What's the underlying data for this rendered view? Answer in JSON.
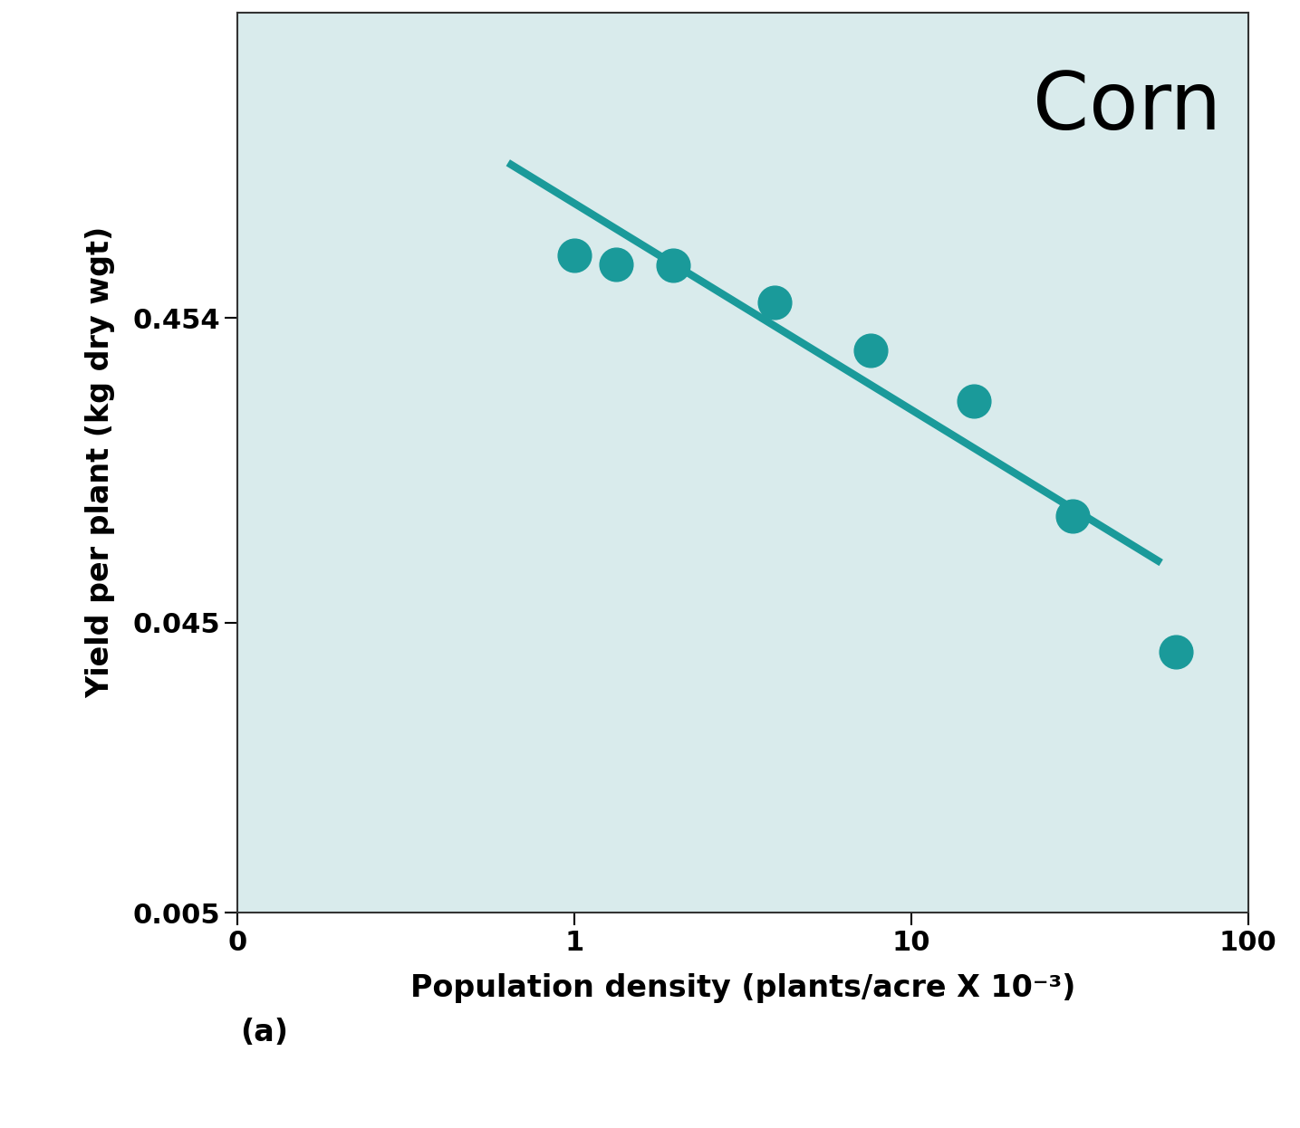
{
  "chart_data": {
    "type": "scatter",
    "x_label": "Population density (plants/acre X 10⁻³)",
    "y_label": "Yield per plant (kg dry wgt)",
    "annotations": [
      "Corn",
      "(a)"
    ],
    "log": true,
    "grid": false,
    "xlim": [
      0.1,
      100
    ],
    "ylim": [
      0.005,
      4.6
    ],
    "xticks": [
      {
        "value": 0.1,
        "label": "0"
      },
      1,
      10,
      100
    ],
    "yticks": [
      0.005,
      0.045,
      0.454
    ],
    "series": [
      {
        "type": "scatter",
        "color": "#1a9a9a",
        "marker": "o",
        "x": [
          1.0,
          1.33,
          1.97,
          3.94,
          7.57,
          15.4,
          30.2,
          61
        ],
        "values": [
          0.73,
          0.68,
          0.675,
          0.51,
          0.356,
          0.241,
          0.101,
          0.036
        ]
      },
      {
        "type": "line",
        "color": "#1a9a9a",
        "line_style": "solid",
        "x": [
          0.65,
          54
        ],
        "values": [
          1.45,
          0.072
        ]
      }
    ]
  }
}
